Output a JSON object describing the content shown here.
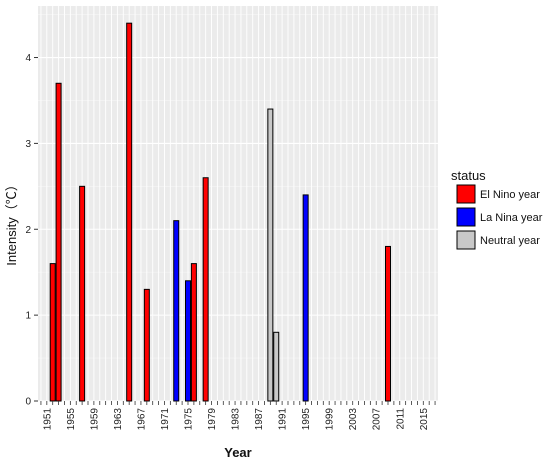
{
  "chart_data": {
    "type": "bar",
    "title": "",
    "xlabel": "Year",
    "ylabel": "Intensity（℃）",
    "ylim": [
      0,
      4.6
    ],
    "y_ticks": [
      0,
      1,
      2,
      3,
      4
    ],
    "x_tick_years": [
      1951,
      1955,
      1959,
      1963,
      1967,
      1971,
      1975,
      1979,
      1983,
      1987,
      1991,
      1995,
      1999,
      2003,
      2007,
      2011,
      2015
    ],
    "x_tick_labels": [
      "1951",
      "1955",
      "1959",
      "1963",
      "1967",
      "1971",
      "1975",
      "1979",
      "1983",
      "1987",
      "1991",
      "1995",
      "1999",
      "2003",
      "2007",
      "2011",
      "2015"
    ],
    "x_range": [
      1949.5,
      2017.5
    ],
    "grid": true,
    "legend_title": "status",
    "legend_position": "right",
    "series": [
      {
        "name": "El Nino year",
        "color": "#ff0000"
      },
      {
        "name": "La Nina year",
        "color": "#0000ff"
      },
      {
        "name": "Neutral year",
        "color": "#c8c8c8"
      }
    ],
    "bars": [
      {
        "year": 1952,
        "value": 1.6,
        "status": "El Nino year"
      },
      {
        "year": 1953,
        "value": 3.7,
        "status": "El Nino year"
      },
      {
        "year": 1957,
        "value": 2.5,
        "status": "El Nino year"
      },
      {
        "year": 1965,
        "value": 4.4,
        "status": "El Nino year"
      },
      {
        "year": 1968,
        "value": 1.3,
        "status": "El Nino year"
      },
      {
        "year": 1973,
        "value": 2.1,
        "status": "La Nina year"
      },
      {
        "year": 1975,
        "value": 1.4,
        "status": "La Nina year"
      },
      {
        "year": 1976,
        "value": 1.6,
        "status": "El Nino year"
      },
      {
        "year": 1978,
        "value": 2.6,
        "status": "El Nino year"
      },
      {
        "year": 1989,
        "value": 3.4,
        "status": "Neutral year"
      },
      {
        "year": 1990,
        "value": 0.8,
        "status": "Neutral year"
      },
      {
        "year": 1995,
        "value": 2.4,
        "status": "La Nina year"
      },
      {
        "year": 2009,
        "value": 1.8,
        "status": "El Nino year"
      }
    ]
  }
}
